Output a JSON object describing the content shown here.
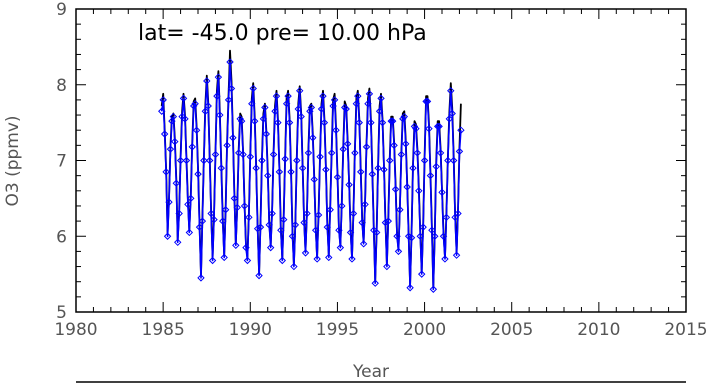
{
  "chart_data": {
    "type": "line",
    "title": "lat=  -45.0  pre=  10.00  hPa",
    "xlabel": "Year",
    "ylabel": "O3 (ppmv)",
    "xlim": [
      1980,
      2015
    ],
    "ylim": [
      5,
      9
    ],
    "xticks": [
      1980,
      1985,
      1990,
      1995,
      2000,
      2005,
      2010,
      2015
    ],
    "yticks": [
      5,
      6,
      7,
      8,
      9
    ],
    "grid": false,
    "legend": "none",
    "x_start": 1984.92,
    "x_step_years": 0.08333,
    "series": [
      {
        "color": "#000000",
        "marker": "none",
        "values": [
          7.72,
          7.88,
          7.4,
          6.9,
          6.05,
          6.5,
          7.2,
          7.58,
          7.62,
          7.3,
          6.75,
          5.95,
          6.35,
          7.05,
          7.65,
          7.88,
          7.6,
          7.05,
          6.48,
          6.08,
          6.55,
          7.22,
          7.78,
          7.82,
          7.45,
          6.88,
          6.18,
          5.48,
          6.25,
          7.05,
          7.72,
          8.12,
          7.78,
          7.05,
          6.35,
          5.72,
          6.28,
          7.12,
          7.92,
          8.18,
          7.65,
          6.95,
          6.25,
          5.75,
          6.4,
          7.25,
          7.88,
          8.45,
          8.05,
          7.35,
          6.55,
          5.9,
          6.42,
          7.15,
          7.62,
          7.58,
          7.12,
          6.45,
          5.88,
          5.72,
          6.3,
          7.1,
          7.82,
          8.02,
          7.58,
          6.95,
          6.15,
          5.5,
          6.18,
          7.05,
          7.62,
          7.75,
          7.4,
          6.85,
          6.2,
          5.88,
          6.35,
          7.12,
          7.72,
          7.92,
          7.55,
          6.9,
          6.12,
          5.7,
          6.28,
          7.08,
          7.82,
          7.92,
          7.55,
          6.9,
          6.05,
          5.62,
          6.2,
          7.05,
          7.75,
          7.98,
          7.62,
          6.95,
          6.22,
          5.8,
          6.35,
          7.15,
          7.72,
          7.75,
          7.35,
          6.8,
          6.12,
          5.72,
          6.32,
          7.1,
          7.75,
          7.92,
          7.55,
          6.92,
          6.18,
          5.75,
          6.4,
          7.15,
          7.8,
          7.88,
          7.45,
          6.82,
          6.12,
          5.88,
          6.45,
          7.2,
          7.78,
          7.72,
          7.28,
          6.72,
          6.08,
          5.72,
          6.35,
          7.15,
          7.82,
          7.92,
          7.55,
          6.9,
          6.22,
          5.92,
          6.48,
          7.22,
          7.82,
          7.95,
          7.55,
          6.88,
          6.12,
          5.4,
          6.1,
          6.95,
          7.72,
          7.88,
          7.55,
          6.92,
          6.22,
          5.62,
          6.25,
          7.05,
          7.58,
          7.58,
          7.25,
          6.68,
          6.05,
          5.82,
          6.4,
          7.12,
          7.62,
          7.65,
          7.28,
          6.7,
          6.05,
          5.35,
          6.02,
          6.95,
          7.52,
          7.48,
          7.15,
          6.65,
          6.05,
          5.52,
          6.18,
          7.05,
          7.85,
          7.85,
          7.48,
          6.85,
          6.12,
          5.32,
          6.05,
          6.98,
          7.52,
          7.52,
          7.15,
          6.62,
          6.05,
          5.72,
          6.3,
          7.05,
          7.62,
          8.02,
          7.7,
          7.05,
          6.3,
          5.78,
          6.35,
          7.18,
          7.75
        ]
      },
      {
        "color": "#0000ff",
        "marker": "diamond",
        "values": [
          7.65,
          7.8,
          7.35,
          6.85,
          6.0,
          6.45,
          7.15,
          7.52,
          7.58,
          7.25,
          6.7,
          5.92,
          6.3,
          7.0,
          7.58,
          7.82,
          7.55,
          7.0,
          6.42,
          6.05,
          6.5,
          7.18,
          7.72,
          7.75,
          7.4,
          6.82,
          6.12,
          5.45,
          6.2,
          7.0,
          7.65,
          8.05,
          7.72,
          7.0,
          6.3,
          5.68,
          6.22,
          7.08,
          7.85,
          8.1,
          7.6,
          6.9,
          6.2,
          5.72,
          6.35,
          7.2,
          7.8,
          8.3,
          7.95,
          7.3,
          6.5,
          5.88,
          6.38,
          7.1,
          7.55,
          7.52,
          7.08,
          6.4,
          5.85,
          5.68,
          6.25,
          7.05,
          7.75,
          7.95,
          7.52,
          6.9,
          6.1,
          5.48,
          6.12,
          7.0,
          7.55,
          7.7,
          7.35,
          6.8,
          6.15,
          5.85,
          6.3,
          7.08,
          7.65,
          7.85,
          7.5,
          6.85,
          6.08,
          5.68,
          6.22,
          7.02,
          7.75,
          7.85,
          7.5,
          6.85,
          6.0,
          5.6,
          6.15,
          7.0,
          7.68,
          7.92,
          7.58,
          6.9,
          6.18,
          5.78,
          6.3,
          7.1,
          7.65,
          7.7,
          7.3,
          6.75,
          6.08,
          5.7,
          6.28,
          7.05,
          7.68,
          7.85,
          7.5,
          6.88,
          6.12,
          5.72,
          6.35,
          7.1,
          7.72,
          7.8,
          7.4,
          6.78,
          6.08,
          5.85,
          6.4,
          7.15,
          7.7,
          7.68,
          7.22,
          6.68,
          6.05,
          5.7,
          6.3,
          7.1,
          7.75,
          7.85,
          7.5,
          6.85,
          6.18,
          5.9,
          6.42,
          7.18,
          7.75,
          7.88,
          7.5,
          6.82,
          6.08,
          5.38,
          6.05,
          6.9,
          7.65,
          7.82,
          7.5,
          6.88,
          6.18,
          5.6,
          6.2,
          7.0,
          7.52,
          7.52,
          7.2,
          6.62,
          6.0,
          5.8,
          6.35,
          7.08,
          7.55,
          7.58,
          7.22,
          6.65,
          6.0,
          5.32,
          5.98,
          6.9,
          7.45,
          7.42,
          7.1,
          6.6,
          6.0,
          5.5,
          6.12,
          7.0,
          7.78,
          7.78,
          7.42,
          6.8,
          6.08,
          5.3,
          6.0,
          6.92,
          7.45,
          7.45,
          7.1,
          6.58,
          6.0,
          5.7,
          6.25,
          7.0,
          7.55,
          7.92,
          7.62,
          7.0,
          6.25,
          5.75,
          6.3,
          7.12,
          7.4
        ]
      }
    ]
  }
}
